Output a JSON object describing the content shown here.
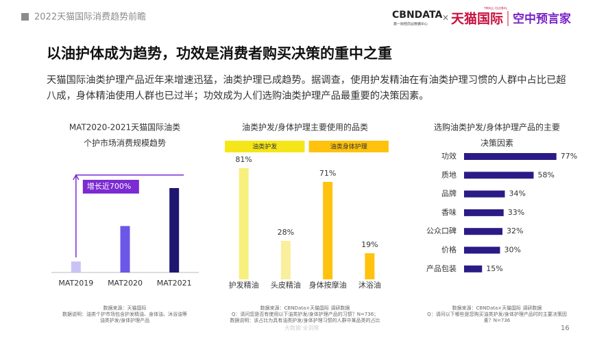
{
  "header": {
    "section": "2022天猫国际消费趋势前瞻",
    "logo_cbn": "CBNDATA",
    "logo_cbn_sub": "第一财经商业数据中心",
    "logo_x": "×",
    "logo_tmall": "天猫国际",
    "logo_tmall_sub": "TMALL GLOBAL",
    "logo_partner": "空中预言家"
  },
  "headline": "以油护体成为趋势，功效是消费者购买决策的重中之重",
  "body": "天猫国际油类护理产品近年来增速迅猛，油类护理已成趋势。据调查，使用护发精油在有油类护理习惯的人群中占比已超八成，身体精油使用人群也已过半；功效成为人们选购油类护理产品最重要的决策因素。",
  "chart_data": [
    {
      "type": "bar",
      "title": [
        "MAT2020-2021天猫国际油类",
        "个护市场消费规模趋势"
      ],
      "categories": [
        "MAT2019",
        "MAT2020",
        "MAT2021"
      ],
      "values": [
        13,
        55,
        100
      ],
      "colors": [
        "#c9c3f5",
        "#6b57e8",
        "#1e1670"
      ],
      "annotation": "增长近700%",
      "annotation_color": "#7b2bd1",
      "notes": [
        "数据来源：天猫国际",
        "数据说明：油类个护市场包含护发精油、身体油、沐浴油等",
        "油类护发/身体护理产品"
      ]
    },
    {
      "type": "bar",
      "title": [
        "油类护发/身体护理主要使用的品类"
      ],
      "categories": [
        "护发精油",
        "头皮精油",
        "身体按摩油",
        "沐浴油"
      ],
      "values": [
        81,
        28,
        71,
        19
      ],
      "value_labels": [
        "81%",
        "28%",
        "71%",
        "19%"
      ],
      "colors": [
        "#f7f07e",
        "#f9ef9c",
        "#ffc20e",
        "#ffc20e"
      ],
      "groups": [
        {
          "label": "油类护发",
          "color": "#f5e61a"
        },
        {
          "label": "油类身体护理",
          "color": "#ffc20e"
        }
      ],
      "notes": [
        "数据来源：CBNData×天猫国际 调研数据",
        "Q：请问您是否有使用以下油类护发/身体护理产品的习惯？N=736；",
        "数据说明：该占比为具有油类护发/身体护理习惯的人群中某品类的占比"
      ]
    },
    {
      "type": "barh",
      "title": [
        "选购油类护发/身体护理产品的主要",
        "决策因素"
      ],
      "categories": [
        "功效",
        "质地",
        "品牌",
        "香味",
        "公众口碑",
        "价格",
        "产品包装"
      ],
      "values": [
        77,
        58,
        34,
        33,
        32,
        30,
        15
      ],
      "value_labels": [
        "77%",
        "58%",
        "34%",
        "33%",
        "32%",
        "30%",
        "15%"
      ],
      "color": "#2b1b86",
      "notes": [
        "数据来源：CBNData×天猫国际 调研数据",
        "Q：请问以下哪些是您购买油类护发/身体护理产品时的主要决策因",
        "素？N=736"
      ]
    }
  ],
  "watermark": "大数据·全洞察",
  "page_number": "16"
}
